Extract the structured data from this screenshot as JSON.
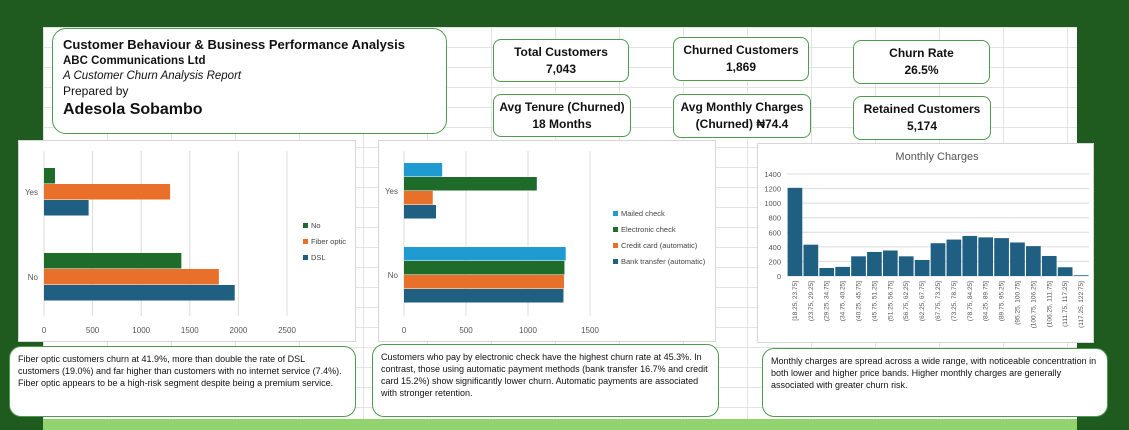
{
  "header": {
    "title": "Customer Behaviour & Business Performance Analysis",
    "company": "ABC Communications Ltd",
    "subtitle": "A Customer Churn Analysis Report",
    "prepared_label": "Prepared by",
    "author": "Adesola Sobambo"
  },
  "kpis": {
    "total_customers": {
      "label": "Total Customers",
      "value": "7,043"
    },
    "churned_customers": {
      "label": "Churned Customers",
      "value": "1,869"
    },
    "churn_rate": {
      "label": "Churn Rate",
      "value": "26.5%"
    },
    "avg_tenure": {
      "label": "Avg Tenure (Churned)",
      "value": "18 Months"
    },
    "avg_monthly": {
      "label": "Avg Monthly Charges",
      "value": "(Churned) ₦74.4"
    },
    "retained_customers": {
      "label": "Retained Customers",
      "value": "5,174"
    }
  },
  "notes": {
    "internet": "Fiber optic customers churn at 41.9%, more than double the rate of DSL customers (19.0%) and far higher than customers with no internet service (7.4%). Fiber optic appears to be a high-risk segment despite being a premium service.",
    "payment": "Customers who pay by electronic check have the highest churn rate at 45.3%. In contrast, those using automatic payment methods (bank transfer 16.7% and credit card 15.2%) show significantly lower churn. Automatic payments are associated with stronger retention.",
    "monthly": "Monthly charges are spread across a wide range, with noticeable concentration in both lower and higher price bands. Higher monthly charges are generally associated with greater churn risk."
  },
  "chart_data": [
    {
      "type": "bar",
      "orientation": "horizontal",
      "categories": [
        "Yes",
        "No"
      ],
      "series": [
        {
          "name": "No",
          "color": "#1e6b2a",
          "values": [
            113,
            1413
          ]
        },
        {
          "name": "Fiber optic",
          "color": "#e9702b",
          "values": [
            1297,
            1799
          ]
        },
        {
          "name": "DSL",
          "color": "#1f5f82",
          "values": [
            459,
            1962
          ]
        }
      ],
      "xlim": [
        0,
        2500
      ],
      "xticks": [
        "0",
        "500",
        "1000",
        "1500",
        "2000",
        "2500"
      ],
      "legend": "right",
      "grid": true
    },
    {
      "type": "bar",
      "orientation": "horizontal",
      "categories": [
        "Yes",
        "No"
      ],
      "series": [
        {
          "name": "Mailed check",
          "color": "#1f9bd1",
          "values": [
            308,
            1304
          ]
        },
        {
          "name": "Electronic check",
          "color": "#1e6b2a",
          "values": [
            1071,
            1294
          ]
        },
        {
          "name": "Credit card (automatic)",
          "color": "#e9702b",
          "values": [
            232,
            1290
          ]
        },
        {
          "name": "Bank transfer (automatic)",
          "color": "#1f5f82",
          "values": [
            258,
            1286
          ]
        }
      ],
      "xlim": [
        0,
        1500
      ],
      "xticks": [
        "0",
        "500",
        "1000",
        "1500"
      ],
      "legend": "right",
      "grid": true
    },
    {
      "type": "bar",
      "title": "Monthly Charges",
      "color": "#1f5f82",
      "categories": [
        "[18.25, 23.75]",
        "(23.75, 29.25]",
        "(29.25, 34.75]",
        "(34.75, 40.25]",
        "(40.25, 45.75]",
        "(45.75, 51.25]",
        "(51.25, 56.75]",
        "(56.75, 62.25]",
        "(62.25, 67.75]",
        "(67.75, 73.25]",
        "(73.25, 78.75]",
        "(78.75, 84.25]",
        "(84.25, 89.75]",
        "(89.75, 95.25]",
        "(95.25, 100.75]",
        "(100.75, 106.25]",
        "(106.25, 111.75]",
        "(111.75, 117.25]",
        "(117.25, 122.75]"
      ],
      "values": [
        1210,
        430,
        110,
        125,
        270,
        330,
        350,
        270,
        220,
        450,
        500,
        550,
        530,
        520,
        460,
        410,
        275,
        120,
        10
      ],
      "ylim": [
        0,
        1400
      ],
      "yticks": [
        "0",
        "200",
        "400",
        "600",
        "800",
        "1000",
        "1200",
        "1400"
      ],
      "grid": true
    }
  ]
}
